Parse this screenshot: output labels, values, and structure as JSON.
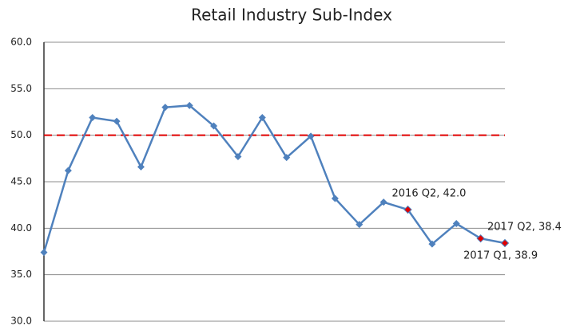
{
  "chart_data": {
    "type": "line",
    "title": "Retail Industry Sub-Index",
    "categories": [
      null,
      null,
      null,
      null,
      null,
      null,
      null,
      null,
      null,
      null,
      null,
      null,
      null,
      null,
      null,
      null,
      null,
      null,
      null,
      null
    ],
    "series": [
      {
        "name": "Retail Industry Sub-Index",
        "color": "#4f81bd",
        "values": [
          37.4,
          46.2,
          51.9,
          51.5,
          46.6,
          53.0,
          53.2,
          51.0,
          47.7,
          51.9,
          47.6,
          49.9,
          43.2,
          40.4,
          42.8,
          42.0,
          38.3,
          40.5,
          38.9,
          38.4
        ]
      }
    ],
    "ylim": [
      30,
      60
    ],
    "yticks": [
      {
        "value": 30,
        "label": "30.0"
      },
      {
        "value": 35,
        "label": "35.0"
      },
      {
        "value": 40,
        "label": "40.0"
      },
      {
        "value": 45,
        "label": "45.0"
      },
      {
        "value": 50,
        "label": "50.0"
      },
      {
        "value": 55,
        "label": "55.0"
      },
      {
        "value": 60,
        "label": "60.0"
      }
    ],
    "grid": true,
    "reference_line": {
      "value": 50,
      "color": "#e00000"
    },
    "highlight_color": "#e00000",
    "annotations": [
      {
        "text": "2016 Q2, 42.0",
        "index": 15
      },
      {
        "text": "2017 Q1, 38.9",
        "index": 18
      },
      {
        "text": "2017 Q2, 38.4",
        "index": 19
      }
    ]
  }
}
